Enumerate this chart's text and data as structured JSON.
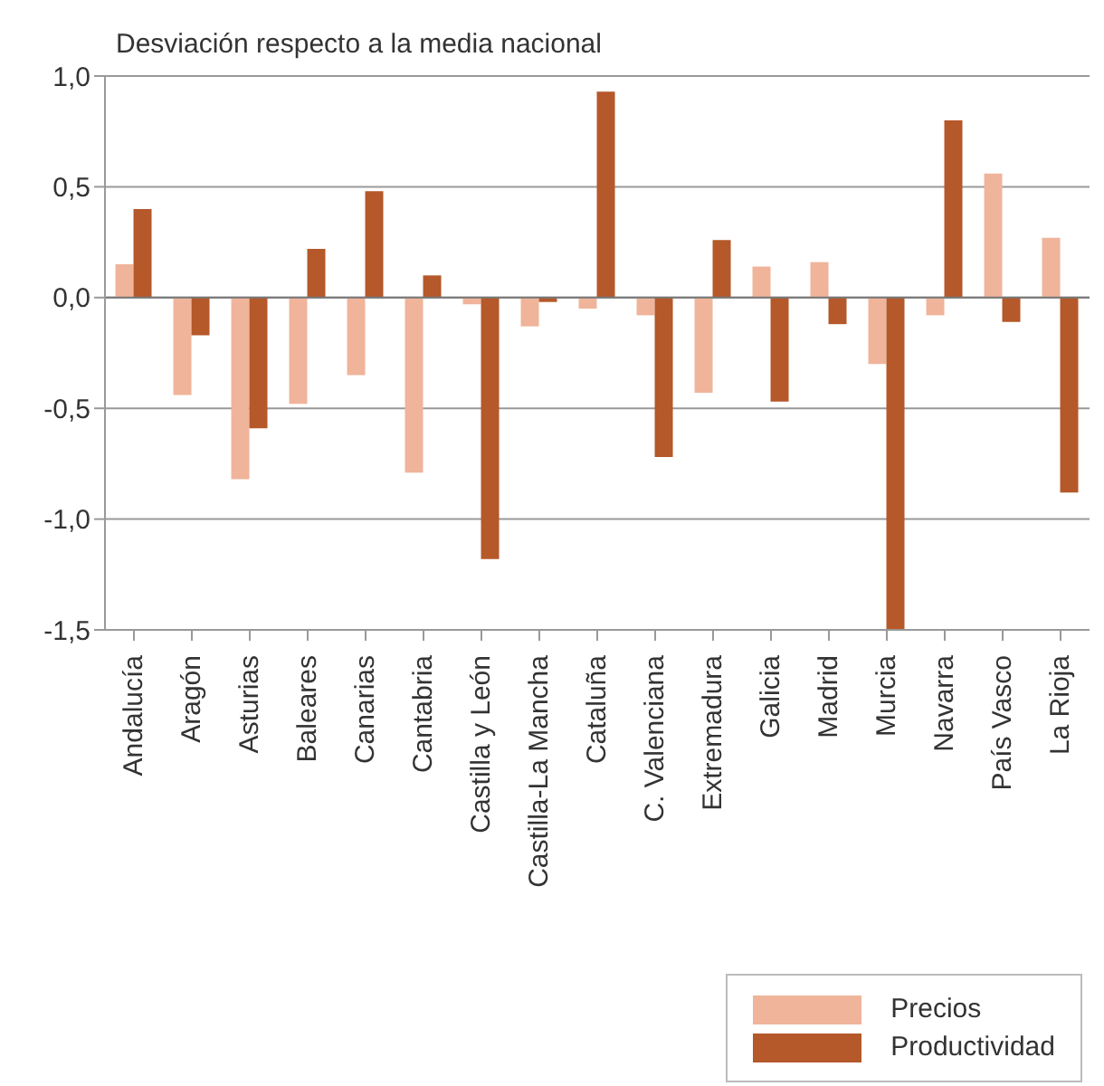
{
  "chart_data": {
    "type": "bar",
    "title": "Desviación respecto a la media nacional",
    "categories": [
      "Andalucía",
      "Aragón",
      "Asturias",
      "Baleares",
      "Canarias",
      "Cantabria",
      "Castilla y León",
      "Castilla-La Mancha",
      "Cataluña",
      "C. Valenciana",
      "Extremadura",
      "Galicia",
      "Madrid",
      "Murcia",
      "Navarra",
      "País Vasco",
      "La Rioja"
    ],
    "series": [
      {
        "name": "Precios",
        "color": "#f0b49a",
        "values": [
          0.15,
          -0.44,
          -0.82,
          -0.48,
          -0.35,
          -0.79,
          -0.03,
          -0.13,
          -0.05,
          -0.08,
          -0.43,
          0.14,
          0.16,
          -0.3,
          -0.08,
          0.56,
          0.27
        ]
      },
      {
        "name": "Productividad",
        "color": "#b5582a",
        "values": [
          0.4,
          -0.17,
          -0.59,
          0.22,
          0.48,
          0.1,
          -1.18,
          -0.02,
          0.93,
          -0.72,
          0.26,
          -0.47,
          -0.12,
          -1.5,
          0.8,
          -0.11,
          -0.88
        ]
      }
    ],
    "ylim": [
      -1.5,
      1.0
    ],
    "yticks": [
      {
        "value": -1.5,
        "label": "-1,5"
      },
      {
        "value": -1.0,
        "label": "-1,0"
      },
      {
        "value": -0.5,
        "label": "-0,5"
      },
      {
        "value": 0,
        "label": "0,0"
      },
      {
        "value": 0.5,
        "label": "0,5"
      },
      {
        "value": 1.0,
        "label": "1,0"
      }
    ],
    "grid": "y",
    "legend": "bottom right"
  }
}
